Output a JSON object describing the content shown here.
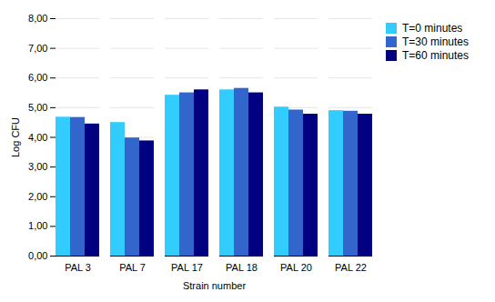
{
  "chart_data": {
    "type": "bar",
    "categories": [
      "PAL 3",
      "PAL 7",
      "PAL 17",
      "PAL 18",
      "PAL 20",
      "PAL 22"
    ],
    "series": [
      {
        "name": "T=0 minutes",
        "color": "#33CCFF",
        "values": [
          4.68,
          4.5,
          5.42,
          5.6,
          5.02,
          4.9
        ]
      },
      {
        "name": "T=30 minutes",
        "color": "#3366CC",
        "values": [
          4.67,
          3.98,
          5.5,
          5.65,
          4.92,
          4.88
        ]
      },
      {
        "name": "T=60 minutes",
        "color": "#000080",
        "values": [
          4.45,
          3.88,
          5.6,
          5.5,
          4.78,
          4.78
        ]
      }
    ],
    "xlabel": "Strain number",
    "ylabel": "Log CFU",
    "ylim": [
      0.0,
      8.0
    ],
    "yticks": [
      {
        "value": 0,
        "label": "0,00"
      },
      {
        "value": 1,
        "label": "1,00"
      },
      {
        "value": 2,
        "label": "2,00"
      },
      {
        "value": 3,
        "label": "3,00"
      },
      {
        "value": 4,
        "label": "4,00"
      },
      {
        "value": 5,
        "label": "5,00"
      },
      {
        "value": 6,
        "label": "6,00"
      },
      {
        "value": 7,
        "label": "7,00"
      },
      {
        "value": 8,
        "label": "8,00"
      }
    ],
    "grid": true,
    "legend": "right"
  }
}
